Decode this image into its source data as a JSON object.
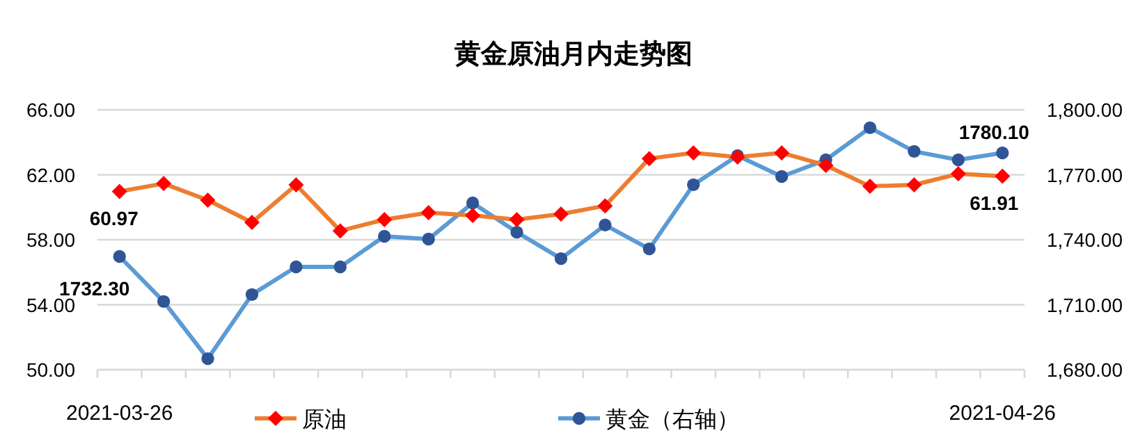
{
  "chart_data": {
    "type": "line",
    "title": "黄金原油月内走势图",
    "categories": [
      "2021-03-26",
      null,
      null,
      null,
      null,
      null,
      null,
      null,
      null,
      null,
      null,
      null,
      null,
      null,
      null,
      null,
      null,
      null,
      null,
      null,
      "2021-04-26"
    ],
    "series": [
      {
        "name": "原油",
        "color": "#ed7d31",
        "colors": [
          "#ff0000",
          "#ff0000",
          "#ff0000",
          "#ff0000",
          "#ff0000",
          "#ff0000",
          "#ff0000",
          "#ff0000",
          "#ff0000",
          "#ff0000",
          "#ff0000",
          "#ff0000",
          "#ff0000",
          "#ff0000",
          "#ff0000",
          "#ff0000",
          "#ff0000",
          "#ff0000",
          "#ff0000",
          "#ff0000",
          "#ff0000"
        ],
        "marker": "diamond",
        "values": [
          60.97,
          61.46,
          60.44,
          59.07,
          61.38,
          58.55,
          59.24,
          59.67,
          59.5,
          59.24,
          59.58,
          60.09,
          63.0,
          63.35,
          63.09,
          63.35,
          62.58,
          61.29,
          61.38,
          62.06,
          61.91
        ],
        "value_labels": [
          "60.97",
          null,
          null,
          null,
          null,
          null,
          null,
          null,
          null,
          null,
          null,
          null,
          null,
          null,
          null,
          null,
          null,
          null,
          null,
          null,
          "61.91"
        ]
      },
      {
        "name": "黄金（右轴）",
        "color": "#5b9bd5",
        "colors": [
          "#2f5597",
          "#2f5597",
          "#2f5597",
          "#2f5597",
          "#2f5597",
          "#2f5597",
          "#2f5597",
          "#2f5597",
          "#2f5597",
          "#2f5597",
          "#2f5597",
          "#2f5597",
          "#2f5597",
          "#2f5597",
          "#2f5597",
          "#2f5597",
          "#2f5597",
          "#2f5597",
          "#2f5597",
          "#2f5597",
          "#2f5597"
        ],
        "marker": "circle",
        "axis": "y2",
        "values": [
          1732.3,
          1711.5,
          1685.1,
          1714.7,
          1727.5,
          1727.5,
          1741.6,
          1740.3,
          1757.0,
          1743.5,
          1731.3,
          1746.8,
          1735.8,
          1765.4,
          1778.8,
          1769.2,
          1776.9,
          1791.7,
          1780.8,
          1776.9,
          1780.1
        ],
        "value_labels": [
          "1732.30",
          null,
          null,
          null,
          null,
          null,
          null,
          null,
          null,
          null,
          null,
          null,
          null,
          null,
          null,
          null,
          null,
          null,
          null,
          null,
          "1780.10"
        ]
      }
    ],
    "ylim": [
      50,
      66
    ],
    "yticks": [
      {
        "value": 50,
        "label": "50.00"
      },
      {
        "value": 54,
        "label": "54.00"
      },
      {
        "value": 58,
        "label": "58.00"
      },
      {
        "value": 62,
        "label": "62.00"
      },
      {
        "value": 66,
        "label": "66.00"
      }
    ],
    "y2lim": [
      1680,
      1800
    ],
    "y2ticks": [
      {
        "value": 1680,
        "label": "1,680.00"
      },
      {
        "value": 1710,
        "label": "1,710.00"
      },
      {
        "value": 1740,
        "label": "1,740.00"
      },
      {
        "value": 1770,
        "label": "1,770.00"
      },
      {
        "value": 1800,
        "label": "1,800.00"
      }
    ],
    "grid": "y",
    "legend": "bottom"
  }
}
